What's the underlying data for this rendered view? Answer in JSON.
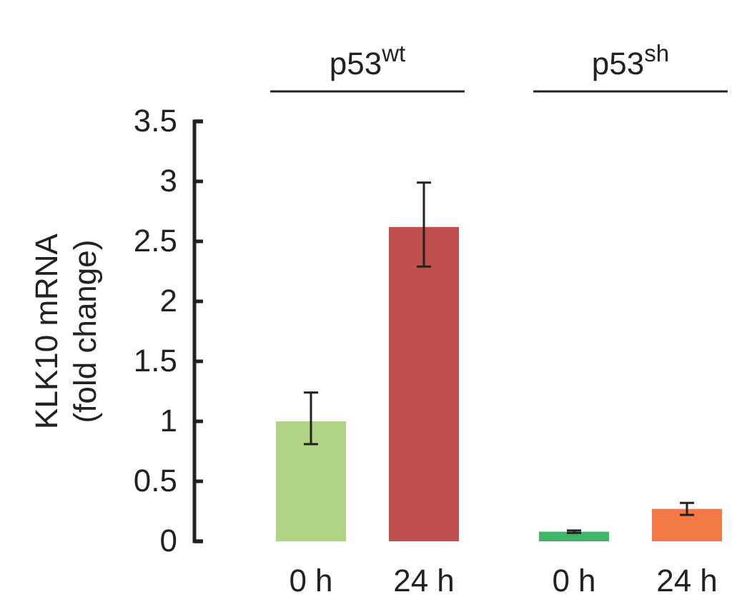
{
  "chart_data": {
    "type": "bar",
    "ylabel": "KLK10 mRNA\n(fold change)",
    "categories": [
      "0 h",
      "24 h",
      "0 h",
      "24 h"
    ],
    "values": [
      1.0,
      2.62,
      0.08,
      0.27
    ],
    "colors": [
      "#b1d384",
      "#c0504d",
      "#3fb56a",
      "#f47a45"
    ],
    "errors": [
      [
        0.81,
        1.24
      ],
      [
        2.29,
        2.99
      ],
      [
        0.07,
        0.09
      ],
      [
        0.22,
        0.32
      ]
    ],
    "annotations": [
      "p53$^{wt}$",
      "p53$^{sh}$"
    ],
    "ylim": [
      0,
      3.5
    ],
    "yticks": [
      0,
      0.5,
      1,
      1.5,
      2,
      2.5,
      3,
      3.5
    ],
    "grid": false
  }
}
